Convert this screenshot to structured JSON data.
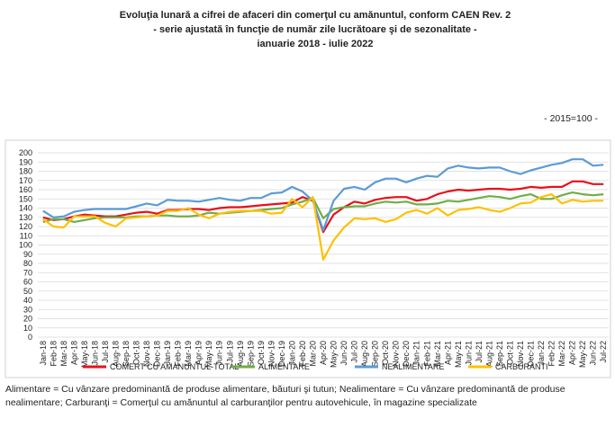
{
  "chart_data": {
    "type": "line",
    "title": [
      "Evoluţia lunară a cifrei de afaceri din comerţul cu amănuntul, conform CAEN Rev. 2",
      "- serie ajustată în funcţie de număr zile lucrătoare şi de sezonalitate -",
      "ianuarie 2018 -  iulie 2022"
    ],
    "annotation": "- 2015=100 -",
    "footnote": [
      "Alimentare = Cu vânzare predominantă de produse alimentare, băuturi şi tutun; Nealimentare = Cu vânzare predominantă de produse",
      "nealimentare; Carburanţi = Comerţul cu amănuntul al carburanţilor pentru autovehicule, în magazine specializate"
    ],
    "categories": [
      "Jan-18",
      "Feb-18",
      "Mar-18",
      "Apr-18",
      "May-18",
      "Jun-18",
      "Jul-18",
      "Aug-18",
      "Sep-18",
      "Oct-18",
      "Nov-18",
      "Dec-18",
      "Jan-19",
      "Feb-19",
      "Mar-19",
      "Apr-19",
      "May-19",
      "Jun-19",
      "Jul-19",
      "Aug-19",
      "Sep-19",
      "Oct-19",
      "Nov-19",
      "Dec-19",
      "Jan-20",
      "Feb-20",
      "Mar-20",
      "Apr-20",
      "May-20",
      "Jun-20",
      "Jul-20",
      "Aug-20",
      "Sep-20",
      "Oct-20",
      "Nov-20",
      "Dec-20",
      "Jan-21",
      "Feb-21",
      "Mar-21",
      "Apr-21",
      "May-21",
      "Jun-21",
      "Jul-21",
      "Aug-21",
      "Sep-21",
      "Oct-21",
      "Nov-21",
      "Dec-21",
      "Jan-22",
      "Feb-22",
      "Mar-22",
      "Apr-22",
      "May-22",
      "Jun-22",
      "Jul-22"
    ],
    "series": [
      {
        "name": "COMERT CU AMANUNTUL-TOTAL",
        "color": "#e8101a",
        "values": [
          130,
          127,
          128,
          131,
          133,
          132,
          131,
          131,
          133,
          135,
          136,
          134,
          138,
          138,
          139,
          139,
          138,
          140,
          141,
          141,
          142,
          143,
          144,
          145,
          146,
          152,
          148,
          114,
          133,
          141,
          147,
          145,
          149,
          151,
          152,
          152,
          148,
          150,
          155,
          158,
          160,
          159,
          160,
          161,
          161,
          160,
          161,
          163,
          162,
          163,
          163,
          169,
          169,
          166,
          166
        ]
      },
      {
        "name": "ALIMENTARE",
        "color": "#70ad47",
        "values": [
          125,
          128,
          128,
          125,
          127,
          129,
          130,
          130,
          130,
          131,
          131,
          132,
          132,
          131,
          131,
          132,
          135,
          134,
          135,
          136,
          137,
          138,
          139,
          140,
          144,
          147,
          151,
          129,
          139,
          141,
          142,
          142,
          145,
          147,
          146,
          147,
          144,
          144,
          145,
          148,
          147,
          149,
          151,
          153,
          152,
          150,
          153,
          155,
          150,
          150,
          154,
          157,
          155,
          154,
          155
        ]
      },
      {
        "name": "NEALIMENTARE",
        "color": "#5b9bd5",
        "values": [
          137,
          130,
          131,
          136,
          138,
          139,
          139,
          139,
          139,
          142,
          145,
          143,
          149,
          148,
          148,
          147,
          149,
          151,
          149,
          148,
          151,
          151,
          156,
          157,
          163,
          158,
          148,
          116,
          148,
          161,
          163,
          160,
          168,
          172,
          172,
          168,
          172,
          175,
          174,
          183,
          186,
          184,
          183,
          184,
          184,
          180,
          177,
          181,
          184,
          187,
          189,
          193,
          193,
          186,
          187
        ]
      },
      {
        "name": "CARBURANTI",
        "color": "#ffc000",
        "values": [
          128,
          120,
          119,
          131,
          131,
          131,
          124,
          120,
          129,
          130,
          131,
          132,
          137,
          137,
          140,
          133,
          129,
          134,
          136,
          137,
          137,
          137,
          134,
          135,
          150,
          141,
          152,
          84,
          105,
          119,
          129,
          128,
          129,
          125,
          128,
          135,
          138,
          134,
          140,
          132,
          138,
          139,
          141,
          138,
          136,
          140,
          145,
          146,
          152,
          155,
          145,
          149,
          147,
          148,
          148
        ]
      }
    ],
    "ylim": [
      0,
      200
    ],
    "yticks": [
      0,
      10,
      20,
      30,
      40,
      50,
      60,
      70,
      80,
      90,
      100,
      110,
      120,
      130,
      140,
      150,
      160,
      170,
      180,
      190,
      200
    ],
    "grid": true
  }
}
